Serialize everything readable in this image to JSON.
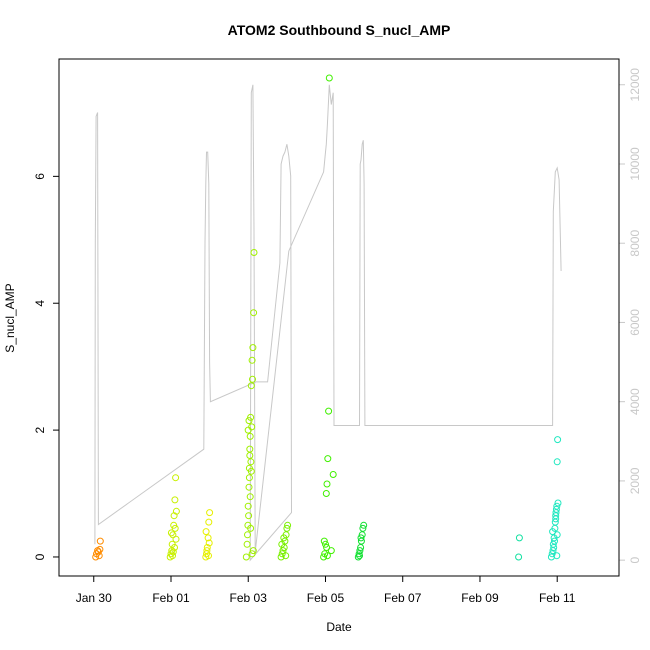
{
  "chart_data": {
    "type": "scatter",
    "title": "ATOM2 Southbound S_nucl_AMP",
    "xlabel": "Date",
    "ylabel": "S_nucl_AMP",
    "x_ticks": [
      "Jan 30",
      "Feb 01",
      "Feb 03",
      "Feb 05",
      "Feb 07",
      "Feb 09",
      "Feb 11"
    ],
    "y_ticks": [
      "0",
      "2",
      "4",
      "6"
    ],
    "y2_ticks": [
      "0",
      "2000",
      "4000",
      "6000",
      "8000",
      "10000",
      "12000"
    ],
    "xlim_days": [
      -1.9,
      12.6
    ],
    "ylim": [
      -0.3,
      7.85
    ],
    "y2lim": [
      -400,
      12650
    ],
    "colors": {
      "line": "#c8c8c8",
      "right_axis": "#c8c8c8"
    },
    "series": [
      {
        "name": "",
        "type": "points",
        "color": "#ff8c00",
        "x_days": [
          -0.95,
          -0.93,
          -0.9,
          -0.88,
          -0.86,
          -0.84,
          -0.83
        ],
        "y": [
          0.0,
          0.05,
          0.1,
          0.08,
          0.02,
          0.12,
          0.25
        ]
      },
      {
        "name": "",
        "type": "points",
        "color": "#c8f000",
        "x_days": [
          0.98,
          1.0,
          1.02,
          1.03,
          1.05,
          1.07,
          1.08,
          1.1,
          1.12,
          1.14,
          1.04,
          1.06,
          1.09,
          1.11,
          1.01,
          1.13
        ],
        "y": [
          0.0,
          0.05,
          0.1,
          0.2,
          0.35,
          0.5,
          0.65,
          0.9,
          1.25,
          0.72,
          0.02,
          0.08,
          0.15,
          0.45,
          0.38,
          0.28
        ]
      },
      {
        "name": "",
        "type": "points",
        "color": "#e6f000",
        "x_days": [
          1.9,
          1.92,
          1.94,
          1.96,
          1.98,
          2.0,
          1.93,
          1.97,
          1.99,
          1.91
        ],
        "y": [
          0.0,
          0.05,
          0.15,
          0.3,
          0.55,
          0.7,
          0.1,
          0.02,
          0.22,
          0.4
        ]
      },
      {
        "name": "",
        "type": "points",
        "color": "#a0f000",
        "x_days": [
          2.95,
          2.97,
          2.99,
          3.0,
          3.02,
          3.03,
          3.04,
          3.05,
          3.06,
          3.08,
          3.1,
          3.12,
          3.14,
          3.15,
          2.98,
          3.01,
          3.07,
          3.09,
          3.11,
          3.13,
          3.03,
          3.05,
          3.02,
          3.04,
          3.06,
          3.08,
          3.0,
          3.1
        ],
        "y": [
          0.0,
          0.2,
          0.5,
          0.8,
          1.1,
          1.4,
          1.7,
          1.9,
          2.2,
          2.7,
          3.1,
          3.3,
          3.85,
          4.8,
          0.35,
          0.65,
          1.5,
          2.05,
          2.8,
          0.1,
          1.25,
          0.95,
          2.15,
          1.6,
          0.45,
          1.35,
          2.0,
          0.05
        ]
      },
      {
        "name": "",
        "type": "points",
        "color": "#7af000",
        "x_days": [
          3.85,
          3.88,
          3.9,
          3.93,
          3.95,
          3.98,
          4.0,
          4.02,
          3.87,
          3.92,
          3.97
        ],
        "y": [
          0.0,
          0.05,
          0.1,
          0.15,
          0.25,
          0.35,
          0.45,
          0.5,
          0.2,
          0.3,
          0.02
        ]
      },
      {
        "name": "",
        "type": "points",
        "color": "#40f000",
        "x_days": [
          4.95,
          4.98,
          5.0,
          5.02,
          5.04,
          5.06,
          5.08,
          5.1,
          5.15,
          5.2,
          5.03,
          5.05,
          4.97
        ],
        "y": [
          0.0,
          0.05,
          0.2,
          1.0,
          1.15,
          1.55,
          2.3,
          7.55,
          0.1,
          1.3,
          0.15,
          0.02,
          0.25
        ]
      },
      {
        "name": "",
        "type": "points",
        "color": "#10e030",
        "x_days": [
          5.85,
          5.87,
          5.89,
          5.91,
          5.93,
          5.95,
          5.97,
          5.99,
          5.88,
          5.92
        ],
        "y": [
          0.0,
          0.05,
          0.1,
          0.15,
          0.25,
          0.35,
          0.45,
          0.5,
          0.02,
          0.3
        ]
      },
      {
        "name": "",
        "type": "points",
        "color": "#10e0a0",
        "x_days": [
          10.0,
          10.02
        ],
        "y": [
          0.0,
          0.3
        ]
      },
      {
        "name": "",
        "type": "points",
        "color": "#20e8c0",
        "x_days": [
          10.85,
          10.87,
          10.89,
          10.9,
          10.92,
          10.94,
          10.95,
          10.96,
          10.97,
          10.98,
          10.99,
          11.0,
          11.01,
          11.02,
          10.88,
          10.91,
          10.93,
          10.96,
          10.99,
          11.0
        ],
        "y": [
          0.0,
          0.05,
          0.1,
          0.2,
          0.3,
          0.45,
          0.55,
          0.65,
          0.7,
          0.75,
          0.8,
          1.5,
          1.85,
          0.85,
          0.4,
          0.15,
          0.25,
          0.6,
          0.02,
          0.35
        ]
      },
      {
        "name": "",
        "type": "line",
        "axis": "right",
        "color": "#c8c8c8",
        "x_days": [
          -0.97,
          -0.96,
          -0.94,
          -0.9,
          -0.88,
          1.85,
          1.88,
          1.9,
          1.92,
          1.95,
          1.98,
          2.0,
          2.02,
          3.2,
          3.5,
          3.82,
          3.85,
          3.9,
          3.95,
          4.0,
          4.05,
          4.1,
          4.12,
          3.05,
          3.08,
          3.12,
          3.15,
          3.18,
          4.05,
          4.95,
          5.0,
          5.02,
          5.05,
          5.1,
          5.15,
          5.2,
          5.22,
          5.88,
          5.9,
          5.92,
          5.95,
          5.98,
          6.0,
          6.02,
          10.88,
          10.9,
          10.95,
          11.0,
          11.05,
          11.1
        ],
        "y2": [
          400,
          8000,
          11200,
          11300,
          900,
          2800,
          8000,
          9500,
          10300,
          10300,
          9500,
          5000,
          4000,
          4500,
          4500,
          7500,
          10000,
          10200,
          10300,
          10500,
          10200,
          9700,
          1200,
          0,
          11800,
          12000,
          8300,
          200,
          7800,
          9800,
          10300,
          10500,
          11000,
          12000,
          11500,
          11800,
          3400,
          3400,
          10000,
          10100,
          10500,
          10600,
          9500,
          3400,
          3400,
          8800,
          9800,
          9900,
          9600,
          7300
        ]
      }
    ]
  }
}
